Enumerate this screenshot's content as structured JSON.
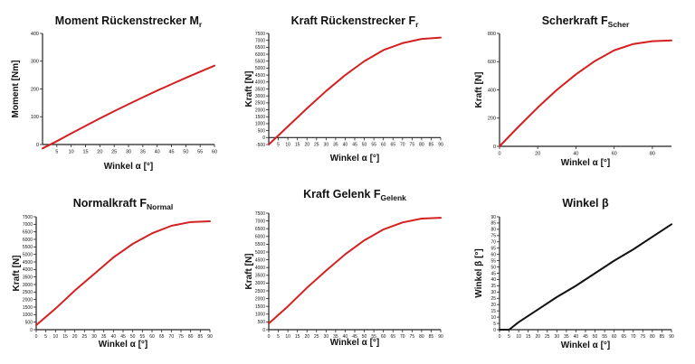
{
  "colors": {
    "curve_red": "#d42020",
    "curve_black": "#111111",
    "axis": "#222222",
    "background": "#ffffff"
  },
  "chart_data": [
    {
      "type": "line",
      "title": {
        "main": "Moment  Rückenstrecker M",
        "sub": "r"
      },
      "xlabel": "Winkel α [°]",
      "ylabel": "Moment [Nm]",
      "xlim": [
        0,
        60
      ],
      "ylim": [
        0,
        400
      ],
      "xticks": [
        5,
        10,
        15,
        20,
        25,
        30,
        35,
        40,
        45,
        50,
        55,
        60
      ],
      "yticks": [
        0,
        100,
        200,
        300,
        400
      ],
      "series": [
        {
          "color": "#d42020",
          "x": [
            0,
            5,
            10,
            15,
            20,
            25,
            30,
            35,
            40,
            45,
            50,
            55,
            60
          ],
          "y": [
            -14,
            12,
            40,
            67,
            94,
            120,
            145,
            170,
            194,
            217,
            240,
            262,
            284
          ]
        }
      ]
    },
    {
      "type": "line",
      "title": {
        "main": "Kraft  Rückenstrecker F",
        "sub": "r"
      },
      "xlabel": "Winkel α [°]",
      "ylabel": "Kraft [N]",
      "xlim": [
        0,
        90
      ],
      "ylim": [
        -500,
        7500
      ],
      "xticks": [
        5,
        10,
        15,
        20,
        25,
        30,
        35,
        40,
        45,
        50,
        55,
        60,
        65,
        70,
        75,
        80,
        85,
        90
      ],
      "yticks": [
        -500,
        0,
        500,
        1000,
        1500,
        2000,
        2500,
        3000,
        3500,
        4000,
        4500,
        5000,
        5500,
        6000,
        6500,
        7000,
        7500
      ],
      "series": [
        {
          "color": "#d42020",
          "x": [
            0,
            10,
            20,
            30,
            40,
            50,
            60,
            70,
            80,
            90
          ],
          "y": [
            -500,
            800,
            2100,
            3350,
            4500,
            5500,
            6300,
            6800,
            7100,
            7200
          ]
        }
      ]
    },
    {
      "type": "line",
      "title": {
        "main": "Scherkraft F",
        "sub": "Scher"
      },
      "xlabel": "Winkel α [°]",
      "ylabel": "Kraft [N]",
      "xlim": [
        0,
        90
      ],
      "ylim": [
        0,
        800
      ],
      "xticks": [
        0,
        20,
        40,
        60,
        80
      ],
      "yticks": [
        0,
        200,
        400,
        600,
        800
      ],
      "series": [
        {
          "color": "#d42020",
          "x": [
            0,
            10,
            20,
            30,
            40,
            50,
            60,
            70,
            80,
            90
          ],
          "y": [
            0,
            140,
            275,
            400,
            510,
            605,
            680,
            725,
            745,
            750
          ]
        }
      ]
    },
    {
      "type": "line",
      "title": {
        "main": "Normalkraft F",
        "sub": "Normal"
      },
      "xlabel": "Winkel α [°]",
      "ylabel": "Kraft [N]",
      "xlim": [
        0,
        90
      ],
      "ylim": [
        0,
        7500
      ],
      "xticks": [
        0,
        5,
        10,
        15,
        20,
        25,
        30,
        35,
        40,
        45,
        50,
        55,
        60,
        65,
        70,
        75,
        80,
        85,
        90
      ],
      "yticks": [
        0,
        500,
        1000,
        1500,
        2000,
        2500,
        3000,
        3500,
        4000,
        4500,
        5000,
        5500,
        6000,
        6500,
        7000,
        7500
      ],
      "series": [
        {
          "color": "#d42020",
          "x": [
            0,
            10,
            20,
            30,
            40,
            50,
            60,
            70,
            80,
            90
          ],
          "y": [
            300,
            1400,
            2600,
            3700,
            4800,
            5700,
            6400,
            6900,
            7150,
            7200
          ]
        }
      ]
    },
    {
      "type": "line",
      "title": {
        "main": "Kraft  Gelenk F",
        "sub": "Gelenk"
      },
      "xlabel": "Winkel α [°]",
      "ylabel": "Kraft [N]",
      "xlim": [
        0,
        90
      ],
      "ylim": [
        0,
        7500
      ],
      "xticks": [
        0,
        5,
        10,
        15,
        20,
        25,
        30,
        35,
        40,
        45,
        50,
        55,
        60,
        65,
        70,
        75,
        80,
        85,
        90
      ],
      "yticks": [
        0,
        500,
        1000,
        1500,
        2000,
        2500,
        3000,
        3500,
        4000,
        4500,
        5000,
        5500,
        6000,
        6500,
        7000,
        7500
      ],
      "series": [
        {
          "color": "#d42020",
          "x": [
            0,
            10,
            20,
            30,
            40,
            50,
            60,
            70,
            80,
            90
          ],
          "y": [
            400,
            1500,
            2700,
            3800,
            4850,
            5750,
            6450,
            6900,
            7150,
            7200
          ]
        }
      ]
    },
    {
      "type": "line",
      "title": {
        "main": "Winkel β",
        "sub": ""
      },
      "xlabel": "Winkel α [°]",
      "ylabel": "Winkel β [°]",
      "xlim": [
        0,
        90
      ],
      "ylim": [
        0,
        90
      ],
      "xticks": [
        0,
        5,
        10,
        15,
        20,
        25,
        30,
        35,
        40,
        45,
        50,
        55,
        60,
        65,
        70,
        75,
        80,
        85,
        90
      ],
      "yticks": [
        0,
        5,
        10,
        15,
        20,
        25,
        30,
        35,
        40,
        45,
        50,
        55,
        60,
        65,
        70,
        75,
        80,
        85,
        90
      ],
      "series": [
        {
          "color": "#111111",
          "x": [
            0,
            5,
            10,
            20,
            30,
            40,
            50,
            60,
            70,
            80,
            90
          ],
          "y": [
            0,
            0,
            6,
            16,
            26,
            35,
            45,
            55,
            64,
            74,
            84
          ]
        }
      ]
    }
  ]
}
